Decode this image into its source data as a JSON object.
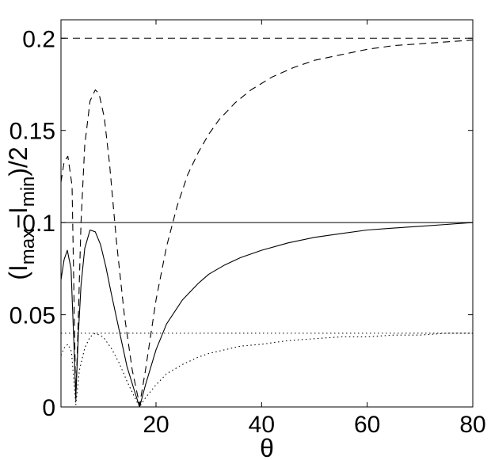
{
  "chart_data": {
    "type": "line",
    "xlabel": "θ",
    "ylabel": {
      "prefix": "(I",
      "sub1": "max",
      "mid": "−I",
      "sub2": "min",
      "suffix": ")/2"
    },
    "xlim": [
      2,
      80
    ],
    "ylim": [
      0,
      0.21
    ],
    "xticks": [
      20,
      40,
      60,
      80
    ],
    "xtick_labels": [
      "20",
      "40",
      "60",
      "80"
    ],
    "yticks": [
      0,
      0.05,
      0.1,
      0.15,
      0.2
    ],
    "ytick_labels": [
      "0",
      "0.05",
      "0.1",
      "0.15",
      "0.2"
    ],
    "grid": false,
    "series": [
      {
        "style": "dashed",
        "reference": 0.2,
        "x": [
          2,
          2.6,
          3.3,
          4.1,
          4.8,
          5.3,
          5.8,
          6.5,
          7.5,
          8.5,
          9.2,
          10.2,
          11.2,
          12.5,
          14,
          15.5,
          16.9,
          18,
          20,
          22,
          24,
          26,
          28,
          30,
          32,
          35,
          38,
          42,
          46,
          50,
          55,
          60,
          65,
          70,
          75,
          80
        ],
        "y": [
          0.122,
          0.133,
          0.136,
          0.12,
          0.003,
          0.05,
          0.1,
          0.142,
          0.166,
          0.172,
          0.17,
          0.157,
          0.132,
          0.09,
          0.05,
          0.02,
          0.001,
          0.02,
          0.058,
          0.087,
          0.109,
          0.126,
          0.138,
          0.148,
          0.156,
          0.165,
          0.172,
          0.179,
          0.184,
          0.188,
          0.191,
          0.194,
          0.196,
          0.197,
          0.198,
          0.199
        ]
      },
      {
        "style": "solid",
        "reference": 0.1,
        "x": [
          2,
          2.6,
          3.2,
          3.9,
          4.5,
          4.8,
          5.3,
          5.8,
          6.5,
          7.5,
          8.5,
          9.5,
          10.5,
          11.5,
          13,
          14.5,
          16,
          16.9,
          18,
          20,
          22,
          25,
          28,
          30,
          33,
          36,
          40,
          45,
          50,
          55,
          60,
          65,
          70,
          75,
          80
        ],
        "y": [
          0.069,
          0.08,
          0.085,
          0.075,
          0.03,
          0.005,
          0.04,
          0.066,
          0.086,
          0.096,
          0.095,
          0.088,
          0.076,
          0.062,
          0.042,
          0.022,
          0.008,
          0.0,
          0.012,
          0.031,
          0.045,
          0.058,
          0.067,
          0.072,
          0.077,
          0.081,
          0.085,
          0.089,
          0.092,
          0.094,
          0.096,
          0.097,
          0.098,
          0.099,
          0.1
        ]
      },
      {
        "style": "dotted",
        "reference": 0.04,
        "x": [
          2,
          2.6,
          3.3,
          4,
          4.8,
          5.5,
          6.5,
          7.5,
          8.5,
          10,
          11.5,
          13,
          14.5,
          16,
          16.9,
          18,
          20,
          22,
          25,
          28,
          30,
          33,
          36,
          40,
          45,
          50,
          55,
          60,
          65,
          70,
          75,
          80
        ],
        "y": [
          0.028,
          0.032,
          0.034,
          0.03,
          0.001,
          0.02,
          0.032,
          0.038,
          0.04,
          0.038,
          0.032,
          0.024,
          0.014,
          0.005,
          0.0,
          0.005,
          0.012,
          0.018,
          0.023,
          0.027,
          0.029,
          0.031,
          0.033,
          0.034,
          0.036,
          0.037,
          0.038,
          0.038,
          0.039,
          0.039,
          0.04,
          0.04
        ]
      }
    ]
  }
}
